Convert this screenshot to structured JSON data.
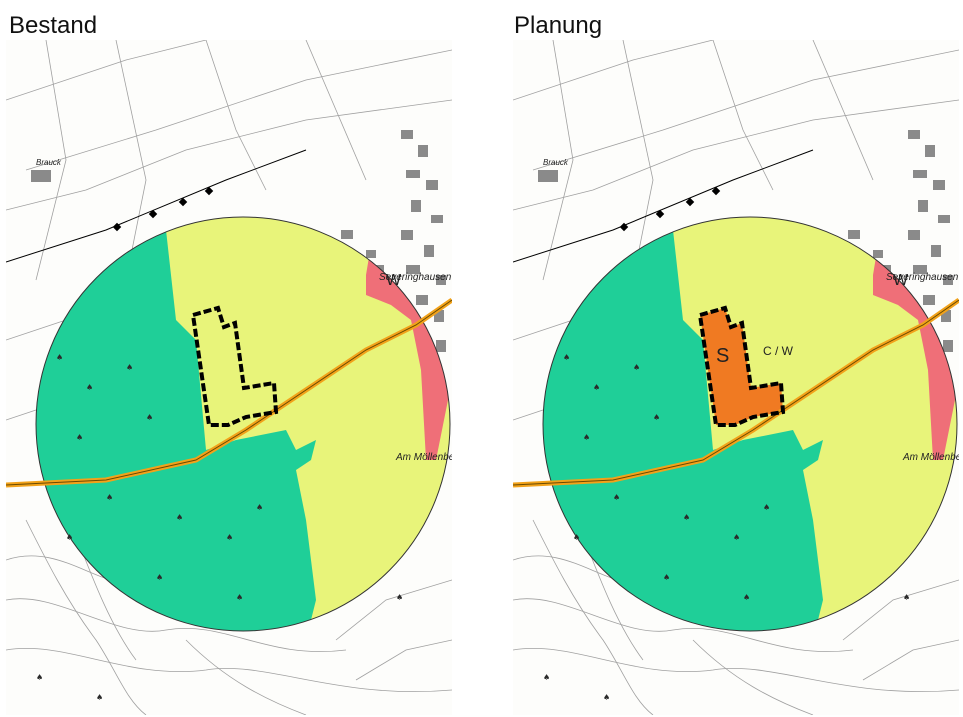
{
  "panels": [
    {
      "title": "Bestand",
      "places": {
        "north_village": "Severinghausen",
        "east_area": "Am Möllenberge",
        "west_hamlet": "Brauck"
      },
      "zones": {
        "w_label": "W"
      },
      "plan_marks": {
        "s_label": "",
        "cw_label": ""
      }
    },
    {
      "title": "Planung",
      "places": {
        "north_village": "Severinghausen",
        "east_area": "Am Möllenberge",
        "west_hamlet": "Brauck"
      },
      "zones": {
        "w_label": "W"
      },
      "plan_marks": {
        "s_label": "S",
        "cw_label": "C / W"
      }
    }
  ],
  "colors": {
    "forest_zone": "#1fcf98",
    "open_zone": "#e8f47a",
    "residential_zone": "#ef6f78",
    "special_zone": "#f07a22",
    "road": "#f2a21a",
    "boundary": "#000000",
    "map_lines": "#9a9a9a"
  }
}
